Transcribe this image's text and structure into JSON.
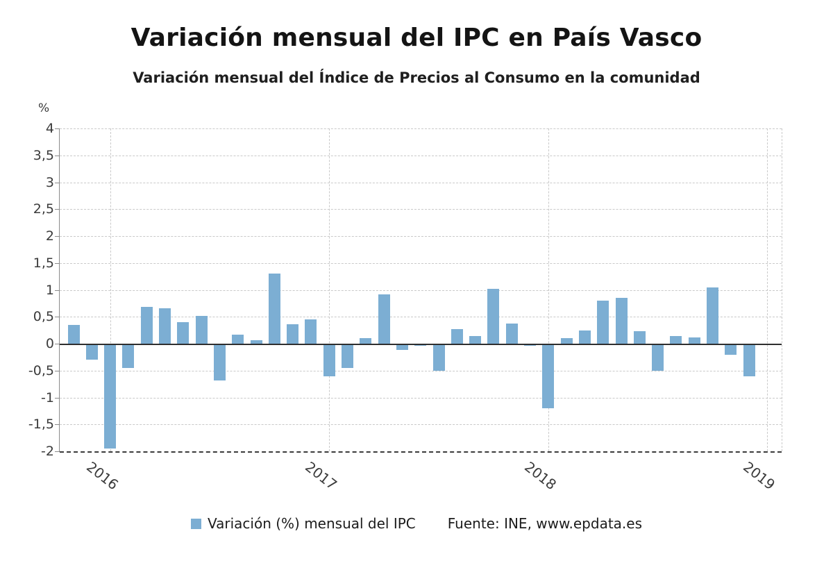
{
  "title": "Variación mensual del IPC en País Vasco",
  "subtitle": "Variación mensual del Índice de Precios al Consumo en la comunidad",
  "legend": {
    "series_label": "Variación (%) mensual del IPC",
    "source_label": "Fuente: INE, www.epdata.es"
  },
  "colors": {
    "bar": "#7caed3",
    "grid": "#c9c9c9",
    "axis": "#8a8a8a",
    "zero_line": "#2e2e2e",
    "text": "#3b3b3b"
  },
  "chart_data": {
    "type": "bar",
    "title": "Variación mensual del IPC en País Vasco",
    "subtitle": "Variación mensual del Índice de Precios al Consumo en la comunidad",
    "ylabel": "%",
    "xlabel": "",
    "ylim": [
      -2,
      4
    ],
    "ytick_step": 0.5,
    "ytick_labels": [
      "4",
      "3,5",
      "3",
      "2,5",
      "2",
      "1,5",
      "1",
      "0,5",
      "0",
      "-0,5",
      "-1",
      "-1,5",
      "-2"
    ],
    "grid": true,
    "legend_position": "bottom",
    "series_name": "Variación (%) mensual del IPC",
    "x": [
      "2015-11",
      "2015-12",
      "2016-01",
      "2016-02",
      "2016-03",
      "2016-04",
      "2016-05",
      "2016-06",
      "2016-07",
      "2016-08",
      "2016-09",
      "2016-10",
      "2016-11",
      "2016-12",
      "2017-01",
      "2017-02",
      "2017-03",
      "2017-04",
      "2017-05",
      "2017-06",
      "2017-07",
      "2017-08",
      "2017-09",
      "2017-10",
      "2017-11",
      "2017-12",
      "2018-01",
      "2018-02",
      "2018-03",
      "2018-04",
      "2018-05",
      "2018-06",
      "2018-07",
      "2018-08",
      "2018-09",
      "2018-10",
      "2018-11",
      "2018-12"
    ],
    "values": [
      0.35,
      -0.3,
      -1.95,
      -0.45,
      0.68,
      0.66,
      0.4,
      0.51,
      -0.68,
      0.17,
      0.06,
      1.3,
      0.36,
      0.45,
      -0.6,
      -0.45,
      0.1,
      0.91,
      -0.12,
      -0.04,
      -0.5,
      0.27,
      0.14,
      1.02,
      0.37,
      -0.04,
      -1.2,
      0.1,
      0.25,
      0.8,
      0.85,
      0.23,
      -0.5,
      0.14,
      0.11,
      1.05,
      -0.2,
      -0.6
    ],
    "year_ticks": [
      {
        "label": "2016",
        "index": 2
      },
      {
        "label": "2017",
        "index": 14
      },
      {
        "label": "2018",
        "index": 26
      },
      {
        "label": "2019",
        "index": 38
      }
    ]
  }
}
